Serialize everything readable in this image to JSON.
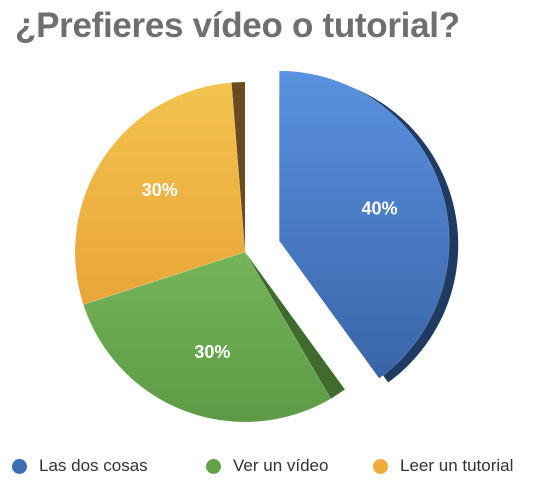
{
  "chart_data": {
    "type": "pie",
    "title": "¿Prefieres vídeo o tutorial?",
    "categories": [
      "Las dos cosas",
      "Ver un vídeo",
      "Leer un tutorial"
    ],
    "values": [
      40,
      30,
      30
    ],
    "labels": [
      "40%",
      "30%",
      "30%"
    ],
    "colors": [
      "#4a7bc7",
      "#6aa84f",
      "#f0b040"
    ],
    "exploded": "Las dos cosas",
    "legend": "bottom"
  }
}
